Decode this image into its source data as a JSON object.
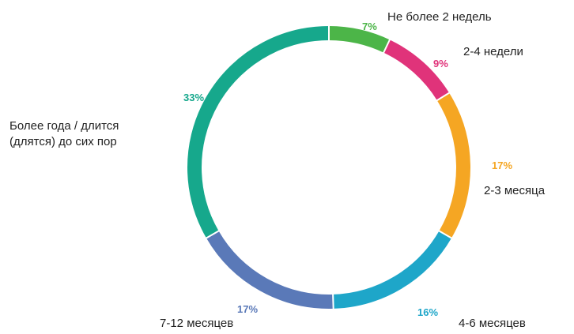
{
  "chart_data": {
    "type": "pie",
    "style": "donut",
    "title": "",
    "categories": [
      "Не более 2 недель",
      "2-4 недели",
      "2-3 месяца",
      "4-6 месяцев",
      "7-12 месяцев",
      "Более года / длится (длятся) до сих пор"
    ],
    "category_lines": [
      [
        "Не более 2 недель"
      ],
      [
        "2-4 недели"
      ],
      [
        "2-3 месяца"
      ],
      [
        "4-6 месяцев"
      ],
      [
        "7-12 месяцев"
      ],
      [
        "Более года / длится",
        "(длятся) до сих пор"
      ]
    ],
    "values": [
      7,
      9,
      17,
      16,
      17,
      33
    ],
    "value_labels": [
      "7%",
      "9%",
      "17%",
      "16%",
      "17%",
      "33%"
    ],
    "colors": [
      "#4cb548",
      "#e0337a",
      "#f5a623",
      "#1ea6c9",
      "#5a79b8",
      "#16a88c"
    ]
  }
}
